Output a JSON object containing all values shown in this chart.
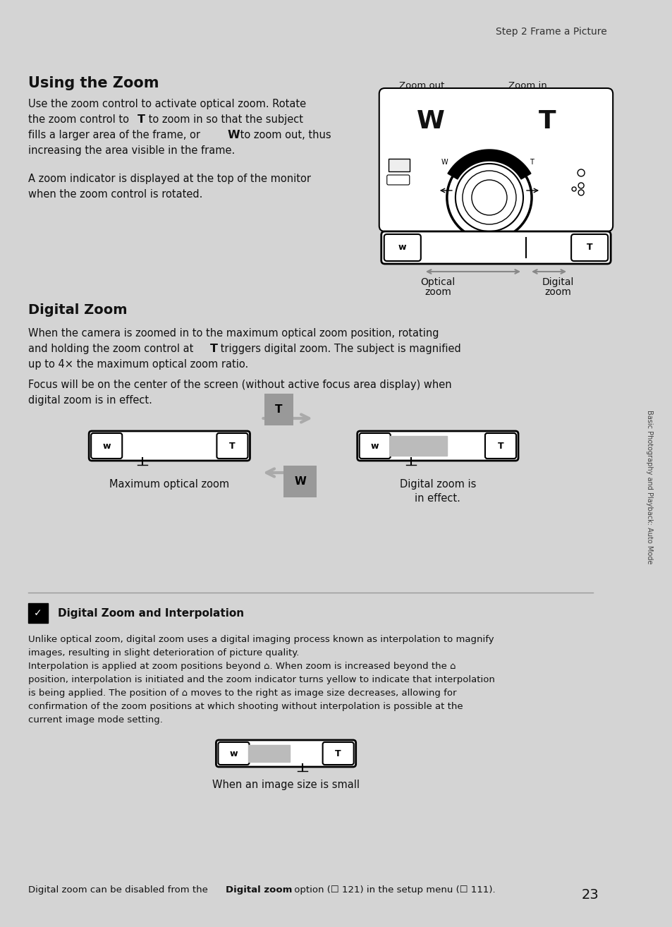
{
  "bg_color": "#d4d4d4",
  "page_bg": "#ffffff",
  "header_text": "Step 2 Frame a Picture",
  "page_number": "23",
  "sidebar_text": "Basic Photography and Playback: Auto Mode",
  "text_color": "#111111",
  "gray_color": "#aaaaaa",
  "light_gray": "#cccccc"
}
